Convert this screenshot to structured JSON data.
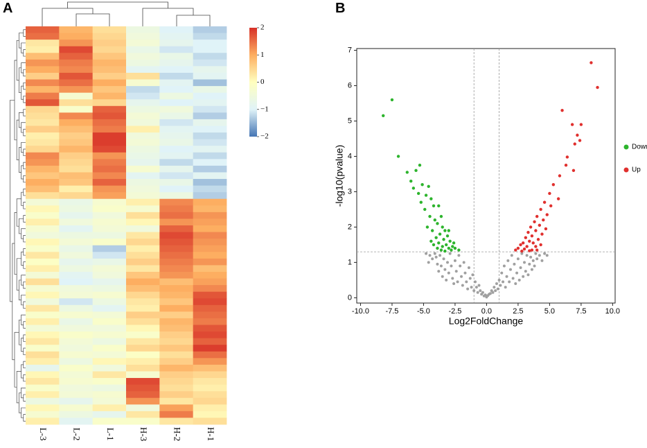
{
  "chart_data": [
    {
      "type": "heatmap",
      "panel_label": "A",
      "columns": [
        "L-3",
        "L-2",
        "L-1",
        "H-3",
        "H-2",
        "H-1"
      ],
      "zlim": [
        -2,
        2
      ],
      "colorscale": [
        "#4575b4",
        "#e0f3f8",
        "#ffffbf",
        "#fdae61",
        "#d73027"
      ],
      "colorbar_ticks": [
        2,
        1,
        0,
        {
          "value": -1,
          "label": "−1"
        },
        {
          "value": -2,
          "label": "−2"
        }
      ],
      "z": [
        [
          1.6,
          0.9,
          0.4,
          -0.6,
          -1.0,
          -1.3
        ],
        [
          1.5,
          1.0,
          0.5,
          -0.5,
          -0.9,
          -1.2
        ],
        [
          0.3,
          1.2,
          0.6,
          -0.4,
          -0.8,
          -1.0
        ],
        [
          0.2,
          1.8,
          0.5,
          -0.7,
          -1.1,
          -1.0
        ],
        [
          0.8,
          1.6,
          0.7,
          -0.5,
          -0.7,
          -1.2
        ],
        [
          1.2,
          1.4,
          0.9,
          -0.6,
          -0.8,
          -1.1
        ],
        [
          1.0,
          1.3,
          0.8,
          -0.9,
          -1.0,
          -0.8
        ],
        [
          0.6,
          1.7,
          0.6,
          0.4,
          -1.2,
          -0.9
        ],
        [
          1.3,
          1.5,
          1.0,
          -0.3,
          -0.9,
          -1.4
        ],
        [
          0.9,
          1.2,
          0.7,
          -1.2,
          -1.0,
          -0.7
        ],
        [
          1.4,
          -0.3,
          0.9,
          -1.1,
          -0.6,
          -1.0
        ],
        [
          1.7,
          0.4,
          0.5,
          -0.8,
          -1.0,
          -0.9
        ],
        [
          0.5,
          -0.2,
          1.6,
          -0.6,
          -0.5,
          -1.1
        ],
        [
          0.4,
          1.3,
          1.7,
          -0.4,
          -0.7,
          -1.3
        ],
        [
          0.3,
          1.0,
          1.5,
          -0.5,
          -1.1,
          -0.8
        ],
        [
          0.6,
          0.8,
          1.4,
          0.2,
          -0.9,
          -1.0
        ],
        [
          0.2,
          0.6,
          1.9,
          -0.5,
          -0.8,
          -1.2
        ],
        [
          0.3,
          0.7,
          1.9,
          -0.4,
          -0.7,
          -1.1
        ],
        [
          0.5,
          0.9,
          1.8,
          -0.6,
          -1.0,
          -0.9
        ],
        [
          1.3,
          0.6,
          1.2,
          -0.7,
          -0.9,
          -1.2
        ],
        [
          1.2,
          0.5,
          1.4,
          -0.8,
          -1.2,
          -1.0
        ],
        [
          0.9,
          0.4,
          1.5,
          -0.3,
          -0.8,
          -1.3
        ],
        [
          0.7,
          0.8,
          1.3,
          -0.9,
          -1.1,
          -0.9
        ],
        [
          1.0,
          0.7,
          1.6,
          -0.6,
          -0.7,
          -1.4
        ],
        [
          0.8,
          0.2,
          1.2,
          -0.5,
          -1.0,
          -1.2
        ],
        [
          0.4,
          0.5,
          1.1,
          -0.4,
          -0.6,
          -1.3
        ],
        [
          -0.4,
          -0.7,
          -0.3,
          0.2,
          1.3,
          1.0
        ],
        [
          0.1,
          -0.6,
          -0.2,
          -0.3,
          1.4,
          0.9
        ],
        [
          -0.2,
          -0.8,
          -0.5,
          0.4,
          1.5,
          1.2
        ],
        [
          0.2,
          -0.5,
          -0.3,
          0.1,
          1.2,
          1.1
        ],
        [
          -0.3,
          -0.9,
          -0.4,
          -0.5,
          1.6,
          1.0
        ],
        [
          -0.5,
          -0.6,
          -0.6,
          0.3,
          1.8,
          1.3
        ],
        [
          0.1,
          -0.4,
          -0.2,
          0.5,
          1.7,
          1.2
        ],
        [
          -0.2,
          -0.7,
          -1.3,
          0.2,
          1.6,
          1.1
        ],
        [
          0.3,
          -0.5,
          -1.1,
          0.4,
          1.5,
          1.0
        ],
        [
          -0.1,
          -0.8,
          -0.7,
          0.6,
          1.4,
          1.2
        ],
        [
          0.2,
          -0.6,
          -0.4,
          0.3,
          1.3,
          0.8
        ],
        [
          -0.4,
          -0.9,
          -0.5,
          0.7,
          1.2,
          1.0
        ],
        [
          0.4,
          -1.0,
          -0.8,
          1.0,
          0.8,
          1.1
        ],
        [
          -0.3,
          -0.5,
          -0.6,
          0.8,
          1.0,
          1.3
        ],
        [
          0.1,
          -0.4,
          -0.3,
          0.5,
          0.9,
          1.7
        ],
        [
          -0.5,
          -1.1,
          -0.6,
          0.3,
          0.7,
          1.8
        ],
        [
          0.3,
          -0.6,
          -0.9,
          0.2,
          1.0,
          1.6
        ],
        [
          -0.2,
          -0.3,
          -0.4,
          0.6,
          0.6,
          1.5
        ],
        [
          0.2,
          -0.7,
          -0.2,
          0.4,
          0.9,
          1.4
        ],
        [
          -0.4,
          -0.5,
          -0.5,
          0.1,
          0.8,
          1.7
        ],
        [
          0.1,
          -0.2,
          -0.3,
          -0.2,
          0.6,
          1.8
        ],
        [
          0.3,
          -0.4,
          -0.6,
          0.3,
          0.5,
          1.6
        ],
        [
          -0.2,
          -0.5,
          -0.2,
          0.5,
          0.7,
          1.9
        ],
        [
          0.4,
          -0.3,
          -0.4,
          -0.1,
          0.4,
          1.5
        ],
        [
          0.2,
          -0.6,
          0.1,
          0.2,
          0.6,
          1.2
        ],
        [
          -0.8,
          -0.2,
          -0.5,
          0.4,
          0.9,
          0.8
        ],
        [
          0.1,
          -0.4,
          0.3,
          -0.3,
          0.6,
          0.5
        ],
        [
          0.3,
          -0.3,
          -0.2,
          1.8,
          0.5,
          0.3
        ],
        [
          -0.2,
          -0.5,
          -0.6,
          1.7,
          0.4,
          0.2
        ],
        [
          0.2,
          -0.4,
          -0.3,
          1.6,
          0.6,
          0.4
        ],
        [
          -0.6,
          -0.8,
          -0.4,
          1.2,
          0.3,
          0.5
        ],
        [
          0.1,
          -0.3,
          0.2,
          -0.5,
          1.1,
          0.2
        ],
        [
          -0.3,
          -0.6,
          -0.8,
          0.3,
          1.4,
          0.1
        ],
        [
          0.2,
          -0.9,
          -0.2,
          -0.2,
          0.3,
          0.4
        ]
      ]
    },
    {
      "type": "scatter",
      "panel_label": "B",
      "x_label": "Log2FoldChange",
      "y_label": "-log10(pvalue)",
      "xlim": [
        -10.3,
        10.2
      ],
      "ylim": [
        -0.15,
        7.05
      ],
      "xticks": [
        {
          "value": -10,
          "label": "-10.0"
        },
        {
          "value": -7.5,
          "label": "-7.5"
        },
        {
          "value": -5,
          "label": "-5.0"
        },
        {
          "value": -2.5,
          "label": "-2.5"
        },
        {
          "value": 0,
          "label": "0.0"
        },
        {
          "value": 2.5,
          "label": "2.5"
        },
        {
          "value": 5,
          "label": "5.0"
        },
        {
          "value": 7.5,
          "label": "7.5"
        },
        {
          "value": 10,
          "label": "10.0"
        }
      ],
      "yticks": [
        0,
        1,
        2,
        3,
        4,
        5,
        6,
        7
      ],
      "vlines": [
        -1,
        1
      ],
      "hline": 1.3,
      "series": [
        {
          "color": "#a0a0a0",
          "x": [
            -4.8,
            -4.5,
            -4.3,
            -4.6,
            -4.1,
            -3.9,
            -4.0,
            -3.7,
            -3.6,
            -3.8,
            -3.4,
            -3.3,
            -3.5,
            -3.1,
            -3.0,
            -3.2,
            -2.9,
            -2.8,
            -2.7,
            -2.6,
            -2.5,
            -2.4,
            -2.3,
            -2.2,
            -2.1,
            -2.0,
            -1.9,
            -1.8,
            -1.7,
            -1.6,
            -1.5,
            -1.4,
            -1.3,
            -1.2,
            -1.1,
            -1.0,
            -0.9,
            -0.8,
            -0.7,
            -0.6,
            -0.5,
            -0.4,
            -0.3,
            -0.2,
            -0.1,
            0.0,
            0.1,
            0.2,
            0.3,
            0.4,
            0.5,
            0.6,
            0.7,
            0.8,
            0.9,
            1.0,
            1.1,
            1.2,
            1.3,
            1.4,
            1.5,
            1.6,
            1.7,
            1.8,
            1.9,
            2.0,
            2.1,
            2.2,
            2.3,
            2.4,
            2.5,
            2.6,
            2.7,
            2.8,
            2.9,
            3.0,
            3.1,
            3.2,
            3.3,
            3.4,
            3.5,
            3.6,
            3.7,
            3.8,
            3.9,
            4.0,
            4.2,
            4.4,
            4.6,
            4.8
          ],
          "y": [
            1.25,
            1.2,
            1.1,
            1.0,
            1.25,
            0.95,
            1.15,
            1.2,
            0.9,
            0.75,
            1.1,
            0.8,
            0.6,
            1.0,
            0.7,
            0.5,
            1.25,
            0.9,
            0.55,
            0.4,
            1.05,
            0.75,
            0.45,
            1.2,
            0.9,
            0.6,
            0.35,
            1.0,
            0.7,
            0.45,
            0.25,
            0.85,
            0.55,
            0.3,
            0.65,
            0.2,
            0.45,
            0.3,
            0.15,
            0.35,
            0.2,
            0.1,
            0.15,
            0.05,
            0.08,
            0.02,
            0.06,
            0.1,
            0.12,
            0.2,
            0.15,
            0.3,
            0.2,
            0.4,
            0.25,
            0.5,
            0.35,
            0.7,
            0.45,
            0.9,
            0.3,
            0.6,
            1.05,
            0.45,
            0.8,
            1.2,
            0.55,
            0.95,
            0.4,
            0.7,
            1.1,
            0.5,
            0.85,
            1.25,
            0.6,
            1.0,
            0.75,
            1.2,
            0.65,
            0.95,
            1.15,
            0.8,
            1.05,
            0.9,
            1.25,
            1.1,
            1.2,
            1.05,
            1.25,
            1.2
          ]
        },
        {
          "name": "Down",
          "color": "#2db42d",
          "x": [
            -8.2,
            -7.5,
            -7.0,
            -6.3,
            -5.3,
            -5.6,
            -6.0,
            -5.8,
            -5.1,
            -4.6,
            -4.8,
            -5.4,
            -5.2,
            -4.4,
            -4.2,
            -4.9,
            -3.8,
            -4.5,
            -3.6,
            -4.1,
            -3.9,
            -3.5,
            -4.7,
            -3.3,
            -4.3,
            -3.7,
            -3.1,
            -4.0,
            -3.4,
            -2.9,
            -3.8,
            -3.2,
            -2.7,
            -3.5,
            -4.2,
            -2.5,
            -3.0,
            -3.9,
            -2.8,
            -3.6,
            -2.2,
            -3.3,
            -4.4,
            -2.6,
            -3.0
          ],
          "y": [
            5.15,
            5.6,
            4.0,
            3.55,
            3.75,
            3.6,
            3.3,
            3.1,
            3.2,
            3.15,
            2.9,
            2.95,
            2.7,
            2.8,
            2.6,
            2.5,
            2.6,
            2.3,
            2.3,
            2.2,
            2.1,
            2.0,
            2.0,
            1.9,
            1.9,
            1.8,
            1.75,
            1.7,
            1.65,
            1.6,
            1.55,
            1.5,
            1.45,
            1.45,
            1.5,
            1.4,
            1.4,
            1.4,
            1.35,
            1.35,
            1.35,
            1.32,
            1.6,
            1.55,
            1.9
          ]
        },
        {
          "name": "Up",
          "color": "#e0302e",
          "x": [
            8.3,
            8.8,
            6.0,
            6.8,
            7.5,
            7.2,
            7.4,
            7.0,
            6.4,
            6.3,
            6.9,
            5.8,
            5.3,
            5.0,
            5.7,
            4.6,
            5.1,
            4.3,
            4.8,
            4.0,
            4.5,
            3.8,
            4.2,
            3.5,
            4.7,
            3.9,
            3.3,
            4.4,
            3.6,
            3.1,
            4.1,
            3.4,
            2.9,
            3.7,
            4.3,
            2.7,
            3.2,
            3.9,
            2.5,
            3.0,
            3.6,
            2.3,
            4.0,
            2.8,
            3.4
          ],
          "y": [
            6.65,
            5.95,
            5.3,
            4.9,
            4.9,
            4.6,
            4.45,
            4.35,
            3.98,
            3.75,
            3.6,
            3.45,
            3.2,
            2.95,
            2.8,
            2.7,
            2.6,
            2.5,
            2.35,
            2.3,
            2.2,
            2.15,
            2.05,
            2.0,
            1.95,
            1.9,
            1.85,
            1.8,
            1.75,
            1.7,
            1.65,
            1.6,
            1.55,
            1.55,
            1.5,
            1.5,
            1.45,
            1.45,
            1.4,
            1.38,
            1.35,
            1.35,
            1.35,
            1.32,
            1.33
          ]
        }
      ]
    }
  ]
}
